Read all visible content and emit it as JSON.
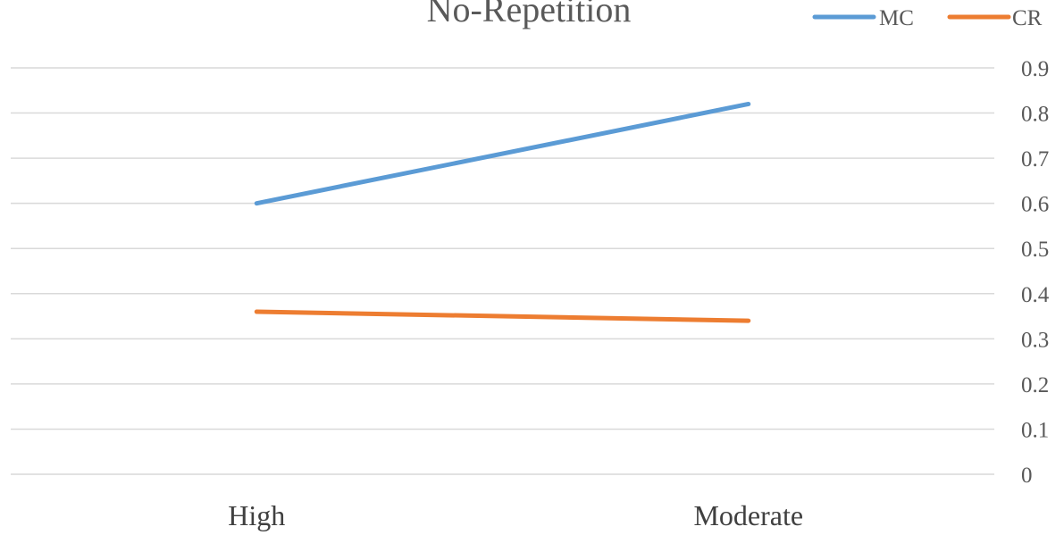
{
  "chart_data": {
    "type": "line",
    "title": "No-Repetition",
    "xlabel": "",
    "ylabel": "",
    "categories": [
      "High",
      "Moderate"
    ],
    "series": [
      {
        "name": "MC",
        "color": "#5b9bd5",
        "values": [
          0.6,
          0.82
        ]
      },
      {
        "name": "CR",
        "color": "#ed7d31",
        "values": [
          0.36,
          0.34
        ]
      }
    ],
    "ylim": [
      0,
      0.9
    ],
    "yticks": [
      "0",
      "0.1",
      "0.2",
      "0.3",
      "0.4",
      "0.5",
      "0.6",
      "0.7",
      "0.8",
      "0.9"
    ],
    "y_axis_side": "right",
    "grid": true,
    "gridline_color": "#d9d9d9",
    "legend_position": "top-right"
  }
}
